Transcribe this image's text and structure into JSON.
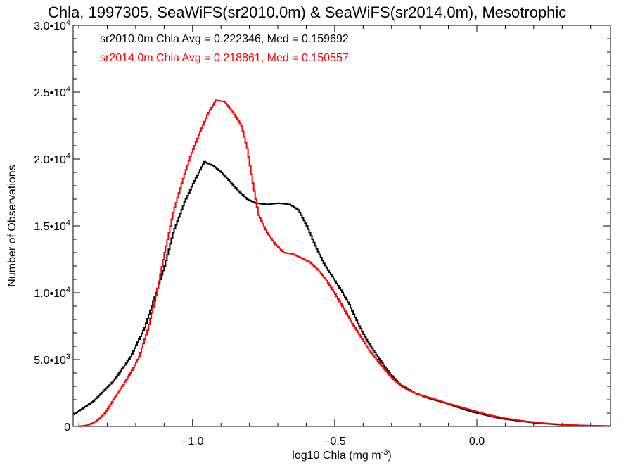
{
  "chart_data": {
    "type": "line",
    "title": "Chla, 1997305, SeaWiFS(sr2010.0m) & SeaWiFS(sr2014.0m), Mesotrophic",
    "xlabel_main": "log10 Chla (mg m",
    "xlabel_sup": "-3",
    "xlabel_tail": ")",
    "ylabel": "Number of Observations",
    "xlim": [
      -1.42,
      0.47
    ],
    "ylim": [
      0,
      30000
    ],
    "x_ticks": [
      {
        "value": -1.0,
        "label": "−1.0"
      },
      {
        "value": -0.5,
        "label": "−0.5"
      },
      {
        "value": 0.0,
        "label": "0.0"
      }
    ],
    "y_ticks": [
      {
        "value": 0,
        "mantissa": "0",
        "exp": ""
      },
      {
        "value": 5000,
        "mantissa": "5.0•10",
        "exp": "3"
      },
      {
        "value": 10000,
        "mantissa": "1.0•10",
        "exp": "4"
      },
      {
        "value": 15000,
        "mantissa": "1.5•10",
        "exp": "4"
      },
      {
        "value": 20000,
        "mantissa": "2.0•10",
        "exp": "4"
      },
      {
        "value": 25000,
        "mantissa": "2.5•10",
        "exp": "4"
      },
      {
        "value": 30000,
        "mantissa": "3.0•10",
        "exp": "4"
      }
    ],
    "annotations": [
      {
        "text": "sr2010.0m Chla Avg = 0.222346, Med = 0.159692",
        "color": "#000000"
      },
      {
        "text": "sr2014.0m Chla Avg = 0.218861, Med = 0.150557",
        "color": "#ff0000"
      }
    ],
    "series": [
      {
        "color": "#000000",
        "points": [
          [
            -1.42,
            900
          ],
          [
            -1.35,
            1900
          ],
          [
            -1.28,
            3400
          ],
          [
            -1.22,
            5200
          ],
          [
            -1.17,
            7400
          ],
          [
            -1.13,
            10000
          ],
          [
            -1.1,
            12000
          ],
          [
            -1.07,
            14500
          ],
          [
            -1.03,
            16800
          ],
          [
            -0.99,
            18600
          ],
          [
            -0.96,
            19800
          ],
          [
            -0.93,
            19500
          ],
          [
            -0.9,
            19000
          ],
          [
            -0.87,
            18300
          ],
          [
            -0.84,
            17600
          ],
          [
            -0.81,
            17000
          ],
          [
            -0.78,
            16700
          ],
          [
            -0.74,
            16600
          ],
          [
            -0.7,
            16700
          ],
          [
            -0.66,
            16600
          ],
          [
            -0.63,
            16200
          ],
          [
            -0.6,
            15000
          ],
          [
            -0.57,
            13500
          ],
          [
            -0.54,
            12200
          ],
          [
            -0.51,
            11200
          ],
          [
            -0.48,
            10200
          ],
          [
            -0.45,
            9100
          ],
          [
            -0.42,
            7700
          ],
          [
            -0.39,
            6500
          ],
          [
            -0.35,
            5200
          ],
          [
            -0.31,
            4000
          ],
          [
            -0.27,
            3100
          ],
          [
            -0.22,
            2500
          ],
          [
            -0.17,
            2100
          ],
          [
            -0.12,
            1800
          ],
          [
            -0.07,
            1450
          ],
          [
            -0.02,
            1100
          ],
          [
            0.03,
            850
          ],
          [
            0.08,
            600
          ],
          [
            0.15,
            400
          ],
          [
            0.22,
            230
          ],
          [
            0.3,
            120
          ],
          [
            0.38,
            60
          ],
          [
            0.47,
            30
          ]
        ]
      },
      {
        "color": "#ff0000",
        "points": [
          [
            -1.4,
            0
          ],
          [
            -1.37,
            100
          ],
          [
            -1.34,
            400
          ],
          [
            -1.31,
            1000
          ],
          [
            -1.28,
            2000
          ],
          [
            -1.25,
            3000
          ],
          [
            -1.22,
            4000
          ],
          [
            -1.19,
            5200
          ],
          [
            -1.16,
            7200
          ],
          [
            -1.13,
            9800
          ],
          [
            -1.1,
            13000
          ],
          [
            -1.07,
            16000
          ],
          [
            -1.04,
            18200
          ],
          [
            -1.01,
            20200
          ],
          [
            -0.98,
            21800
          ],
          [
            -0.95,
            23300
          ],
          [
            -0.92,
            24400
          ],
          [
            -0.89,
            24300
          ],
          [
            -0.86,
            23500
          ],
          [
            -0.83,
            22500
          ],
          [
            -0.81,
            20800
          ],
          [
            -0.79,
            18200
          ],
          [
            -0.77,
            15800
          ],
          [
            -0.74,
            14500
          ],
          [
            -0.71,
            13600
          ],
          [
            -0.68,
            13000
          ],
          [
            -0.65,
            12900
          ],
          [
            -0.62,
            12600
          ],
          [
            -0.59,
            12300
          ],
          [
            -0.56,
            11700
          ],
          [
            -0.53,
            10900
          ],
          [
            -0.5,
            9900
          ],
          [
            -0.47,
            8800
          ],
          [
            -0.44,
            7700
          ],
          [
            -0.41,
            6700
          ],
          [
            -0.38,
            5700
          ],
          [
            -0.34,
            4600
          ],
          [
            -0.3,
            3600
          ],
          [
            -0.26,
            2900
          ],
          [
            -0.21,
            2400
          ],
          [
            -0.16,
            2100
          ],
          [
            -0.11,
            1750
          ],
          [
            -0.06,
            1450
          ],
          [
            -0.01,
            1150
          ],
          [
            0.04,
            850
          ],
          [
            0.1,
            600
          ],
          [
            0.17,
            380
          ],
          [
            0.25,
            210
          ],
          [
            0.33,
            100
          ],
          [
            0.4,
            50
          ],
          [
            0.47,
            20
          ]
        ]
      }
    ]
  }
}
